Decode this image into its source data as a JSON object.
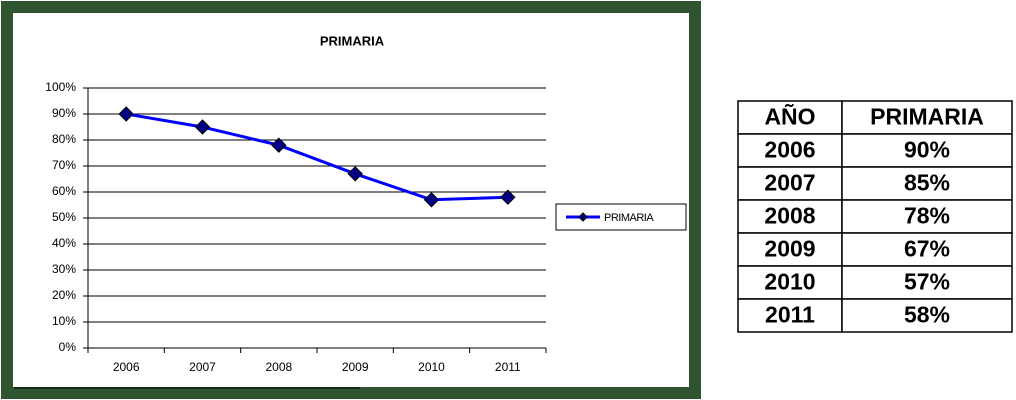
{
  "chart_data": {
    "type": "line",
    "title": "PRIMARIA",
    "categories": [
      "2006",
      "2007",
      "2008",
      "2009",
      "2010",
      "2011"
    ],
    "series": [
      {
        "name": "PRIMARIA",
        "color": "#0000ff",
        "values": [
          90,
          85,
          78,
          67,
          57,
          58
        ]
      }
    ],
    "ylim": [
      0,
      100
    ],
    "yticks": [
      {
        "value": 0,
        "label": "0%"
      },
      {
        "value": 10,
        "label": "10%"
      },
      {
        "value": 20,
        "label": "20%"
      },
      {
        "value": 30,
        "label": "30%"
      },
      {
        "value": 40,
        "label": "40%"
      },
      {
        "value": 50,
        "label": "50%"
      },
      {
        "value": 60,
        "label": "60%"
      },
      {
        "value": 70,
        "label": "70%"
      },
      {
        "value": 80,
        "label": "80%"
      },
      {
        "value": 90,
        "label": "90%"
      },
      {
        "value": 100,
        "label": "100%"
      }
    ],
    "grid": true,
    "legend": "right"
  },
  "table": {
    "header": [
      "AÑO",
      "PRIMARIA"
    ],
    "rows": [
      [
        "2006",
        "90%"
      ],
      [
        "2007",
        "85%"
      ],
      [
        "2008",
        "78%"
      ],
      [
        "2009",
        "67%"
      ],
      [
        "2010",
        "57%"
      ],
      [
        "2011",
        "58%"
      ]
    ]
  }
}
